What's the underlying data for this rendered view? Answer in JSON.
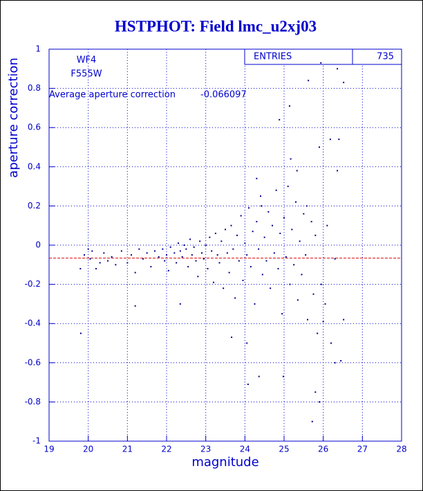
{
  "chart_data": {
    "type": "scatter",
    "title": "HSTPHOT: Field lmc_u2xj03",
    "xlabel": "magnitude",
    "ylabel": "aperture correction",
    "annotations": [
      "WF4",
      "F555W"
    ],
    "avg_label": "Average aperture correction",
    "avg_value": -0.066097,
    "avg_color": "#dd0000",
    "entries_label": "ENTRIES",
    "entries": 735,
    "color": "#00008b",
    "xlim": [
      19,
      28
    ],
    "ylim": [
      -1,
      1
    ],
    "xticks": [
      19,
      20,
      21,
      22,
      23,
      24,
      25,
      26,
      27,
      28
    ],
    "yticks": [
      -1,
      -0.8,
      -0.6,
      -0.4,
      -0.2,
      0,
      0.2,
      0.4,
      0.6,
      0.8,
      1
    ],
    "grid": true,
    "x": [
      19.8,
      19.9,
      20.0,
      20.05,
      20.1,
      20.2,
      20.3,
      20.4,
      20.5,
      20.6,
      20.7,
      20.85,
      21.0,
      21.1,
      21.2,
      21.3,
      21.4,
      21.5,
      21.6,
      21.7,
      21.8,
      21.9,
      21.95,
      22.0,
      22.05,
      22.1,
      22.2,
      22.25,
      22.3,
      22.35,
      22.4,
      22.45,
      22.5,
      22.55,
      22.6,
      22.65,
      22.7,
      22.75,
      22.8,
      22.85,
      22.9,
      22.95,
      23.0,
      23.05,
      23.1,
      23.15,
      23.2,
      23.25,
      23.3,
      23.35,
      23.4,
      23.45,
      23.5,
      23.55,
      23.6,
      23.65,
      23.7,
      23.75,
      23.8,
      23.85,
      23.9,
      23.95,
      24.0,
      24.05,
      24.1,
      24.15,
      24.2,
      24.25,
      24.3,
      24.35,
      24.4,
      24.45,
      24.5,
      24.55,
      24.6,
      24.65,
      24.7,
      24.75,
      24.8,
      24.85,
      24.9,
      24.95,
      25.0,
      25.05,
      25.1,
      25.15,
      25.2,
      25.25,
      25.3,
      25.35,
      25.4,
      25.45,
      25.5,
      25.55,
      25.6,
      25.7,
      25.75,
      25.8,
      25.85,
      25.95,
      26.05,
      26.1,
      26.2,
      26.3,
      26.36,
      25.94,
      26.52,
      25.62,
      25.14,
      24.88,
      26.18,
      26.4,
      25.9,
      25.17,
      25.33,
      26.36,
      24.3,
      25.58,
      24.42,
      26.45,
      25.72,
      24.05,
      23.66,
      24.36,
      24.08,
      24.98,
      19.81,
      26.3,
      25.9,
      25.8,
      26.52,
      26.0,
      21.2,
      22.35
    ],
    "y": [
      -0.12,
      -0.05,
      -0.02,
      -0.07,
      -0.03,
      -0.12,
      -0.09,
      -0.04,
      -0.08,
      -0.06,
      -0.1,
      -0.03,
      -0.09,
      -0.05,
      -0.14,
      -0.02,
      -0.07,
      -0.04,
      -0.11,
      -0.03,
      -0.06,
      -0.02,
      -0.08,
      -0.05,
      -0.13,
      -0.01,
      -0.04,
      -0.09,
      0.01,
      -0.03,
      -0.06,
      0.0,
      -0.02,
      -0.11,
      0.03,
      -0.05,
      -0.01,
      -0.08,
      -0.16,
      0.02,
      -0.04,
      -0.07,
      0.0,
      -0.12,
      0.04,
      -0.03,
      -0.19,
      0.06,
      -0.05,
      -0.09,
      0.02,
      -0.22,
      0.08,
      -0.04,
      -0.14,
      0.1,
      -0.02,
      -0.27,
      0.05,
      -0.08,
      0.15,
      -0.18,
      0.01,
      -0.05,
      0.19,
      -0.11,
      0.07,
      -0.3,
      0.12,
      -0.02,
      0.25,
      -0.15,
      0.04,
      -0.08,
      0.17,
      -0.22,
      0.1,
      -0.04,
      0.28,
      -0.12,
      0.06,
      -0.35,
      0.14,
      -0.06,
      0.3,
      -0.2,
      0.08,
      -0.1,
      0.22,
      -0.28,
      0.02,
      -0.15,
      0.16,
      -0.05,
      -0.38,
      0.12,
      -0.25,
      0.05,
      -0.45,
      -0.2,
      -0.3,
      0.1,
      -0.5,
      -0.07,
      0.9,
      0.93,
      0.83,
      0.84,
      0.71,
      0.64,
      0.54,
      0.54,
      0.5,
      0.44,
      0.38,
      0.38,
      0.34,
      0.2,
      0.2,
      -0.59,
      -0.9,
      -0.5,
      -0.47,
      -0.67,
      -0.71,
      -0.67,
      -0.45,
      -0.6,
      -0.8,
      -0.75,
      -0.38,
      -0.39,
      -0.31,
      -0.3
    ]
  }
}
